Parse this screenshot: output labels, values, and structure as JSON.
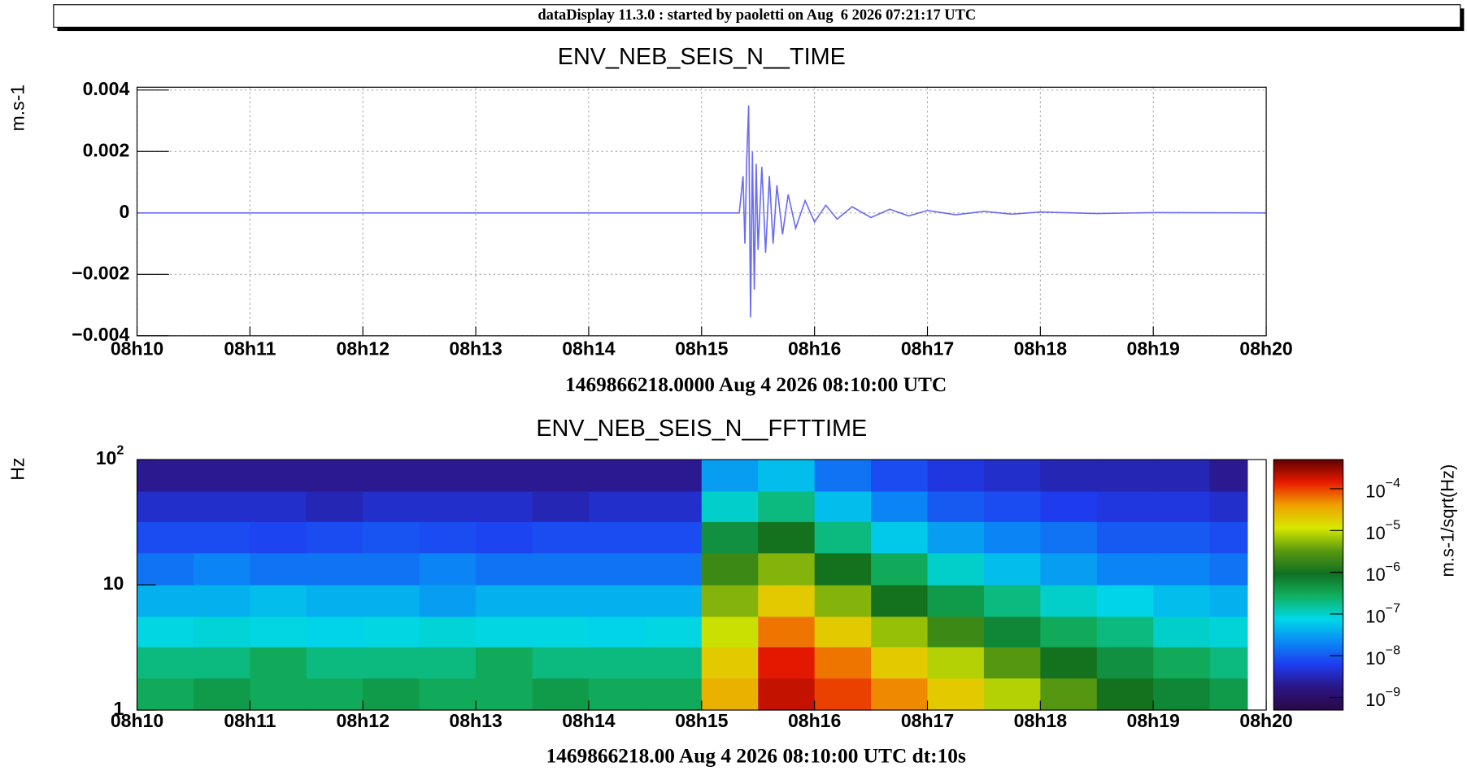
{
  "header": {
    "text": "dataDisplay 11.3.0 : started by paoletti on Aug  6 2026 07:21:17 UTC"
  },
  "chart_data": [
    {
      "type": "line",
      "title": "ENV_NEB_SEIS_N__TIME",
      "xlabel": "1469866218.0000 Aug 4 2026 08:10:00 UTC",
      "ylabel": "m.s-1",
      "color": "#6a6af5",
      "grid": true,
      "xlim": [
        "08h10",
        "08h20"
      ],
      "xticks": [
        "08h10",
        "08h11",
        "08h12",
        "08h13",
        "08h14",
        "08h15",
        "08h16",
        "08h17",
        "08h18",
        "08h19",
        "08h20"
      ],
      "ylim": [
        -0.004,
        0.004
      ],
      "yticks": [
        {
          "value": -0.004,
          "label": "−0.004"
        },
        {
          "value": -0.002,
          "label": "−0.002"
        },
        0,
        0.002,
        0.004
      ],
      "x": [
        "08:10:00",
        "08:15:20",
        "08:15:22",
        "08:15:23",
        "08:15:24",
        "08:15:25",
        "08:15:26",
        "08:15:27",
        "08:15:28",
        "08:15:29",
        "08:15:30",
        "08:15:32",
        "08:15:34",
        "08:15:36",
        "08:15:38",
        "08:15:40",
        "08:15:43",
        "08:15:46",
        "08:15:50",
        "08:15:55",
        "08:16:00",
        "08:16:06",
        "08:16:12",
        "08:16:20",
        "08:16:30",
        "08:16:40",
        "08:16:50",
        "08:17:00",
        "08:17:15",
        "08:17:30",
        "08:17:45",
        "08:18:00",
        "08:18:30",
        "08:19:00",
        "08:20:00"
      ],
      "values": [
        0,
        0,
        0.0012,
        -0.001,
        0.0018,
        0.0035,
        -0.0034,
        0.002,
        -0.0025,
        0.0016,
        -0.0012,
        0.0015,
        -0.0013,
        0.0012,
        -0.001,
        0.0009,
        -0.0007,
        0.0006,
        -0.0005,
        0.0004,
        -0.0003,
        0.00025,
        -0.0002,
        0.0002,
        -0.00015,
        0.00012,
        -0.0001,
        8e-05,
        -6e-05,
        5e-05,
        -4e-05,
        3e-05,
        -2e-05,
        1e-05,
        0
      ]
    },
    {
      "type": "heatmap",
      "title": "ENV_NEB_SEIS_N__FFTTIME",
      "xlabel": "1469866218.00 Aug 4 2026 08:10:00 UTC dt:10s",
      "ylabel": "Hz",
      "zlabel": "m.s-1/sqrt(Hz)",
      "log_y": true,
      "log_z": true,
      "xlim": [
        "08h10",
        "08h20"
      ],
      "xticks": [
        "08h10",
        "08h11",
        "08h12",
        "08h13",
        "08h14",
        "08h15",
        "08h16",
        "08h17",
        "08h18",
        "08h19",
        "08h20"
      ],
      "ylim": [
        1,
        100
      ],
      "yticks": [
        1,
        10,
        {
          "value": 100,
          "label": "10",
          "exp": "2"
        }
      ],
      "zlim": [
        5e-10,
        0.0005
      ],
      "zticks": [
        {
          "value": 1e-09,
          "label": "10",
          "exp": "−9"
        },
        {
          "value": 1e-08,
          "label": "10",
          "exp": "−8"
        },
        {
          "value": 1e-07,
          "label": "10",
          "exp": "−7"
        },
        {
          "value": 1e-06,
          "label": "10",
          "exp": "−6"
        },
        {
          "value": 1e-05,
          "label": "10",
          "exp": "−5"
        },
        {
          "value": 0.0001,
          "label": "10",
          "exp": "−4"
        }
      ],
      "colormap": [
        "#2a0845",
        "#2b1585",
        "#1e3cf0",
        "#0a8af5",
        "#00d8e8",
        "#10b060",
        "#107020",
        "#5a9a10",
        "#d8e800",
        "#f0a000",
        "#e81a00",
        "#600000"
      ],
      "xbins": [
        "08:10:00",
        "08:10:30",
        "08:11:00",
        "08:11:30",
        "08:12:00",
        "08:12:30",
        "08:13:00",
        "08:13:30",
        "08:14:00",
        "08:14:30",
        "08:15:00",
        "08:15:30",
        "08:16:00",
        "08:16:30",
        "08:17:00",
        "08:17:30",
        "08:18:00",
        "08:18:30",
        "08:19:00",
        "08:19:30",
        "08:19:50"
      ],
      "ybins": [
        1,
        1.8,
        3.2,
        5.6,
        10,
        18,
        32,
        56,
        100
      ],
      "values": [
        [
          3e-07,
          4e-07,
          3e-07,
          3e-07,
          4e-07,
          3e-07,
          3e-07,
          4e-07,
          3e-07,
          3e-07,
          3e-05,
          0.0002,
          0.0001,
          5e-05,
          2e-05,
          8e-06,
          3e-06,
          1e-06,
          6e-07,
          4e-07
        ],
        [
          2e-07,
          2e-07,
          3e-07,
          2e-07,
          2e-07,
          2e-07,
          3e-07,
          2e-07,
          2e-07,
          2e-07,
          2e-05,
          0.00015,
          6e-05,
          2e-05,
          8e-06,
          3e-06,
          1e-06,
          5e-07,
          3e-07,
          2e-07
        ],
        [
          8e-08,
          9e-08,
          8e-08,
          7e-08,
          8e-08,
          9e-08,
          8e-08,
          8e-08,
          7e-08,
          8e-08,
          1e-05,
          6e-05,
          2e-05,
          6e-06,
          2e-06,
          6e-07,
          3e-07,
          2e-07,
          1e-07,
          9e-08
        ],
        [
          4e-08,
          4e-08,
          5e-08,
          4e-08,
          4e-08,
          3e-08,
          4e-08,
          4e-08,
          4e-08,
          4e-08,
          5e-06,
          2e-05,
          5e-06,
          1e-06,
          4e-07,
          2e-07,
          1e-07,
          7e-08,
          5e-08,
          4e-08
        ],
        [
          1.5e-08,
          2e-08,
          1.5e-08,
          1.5e-08,
          1.5e-08,
          2e-08,
          1.5e-08,
          1.5e-08,
          1.5e-08,
          1.5e-08,
          2e-06,
          5e-06,
          1e-06,
          3e-07,
          1e-07,
          5e-08,
          3e-08,
          2e-08,
          2e-08,
          1.5e-08
        ],
        [
          8e-09,
          8e-09,
          7e-09,
          8e-09,
          9e-09,
          8e-09,
          7e-09,
          8e-09,
          8e-09,
          8e-09,
          5e-07,
          1e-06,
          2e-07,
          6e-08,
          3e-08,
          2e-08,
          1.5e-08,
          1e-08,
          1e-08,
          8e-09
        ],
        [
          4e-09,
          4e-09,
          4e-09,
          3e-09,
          4e-09,
          4e-09,
          4e-09,
          3e-09,
          4e-09,
          4e-09,
          1e-07,
          2e-07,
          5e-08,
          2e-08,
          1e-08,
          8e-09,
          6e-09,
          5e-09,
          5e-09,
          4e-09
        ],
        [
          2e-09,
          2e-09,
          2e-09,
          2e-09,
          2e-09,
          2e-09,
          2e-09,
          2e-09,
          2e-09,
          2e-09,
          3e-08,
          5e-08,
          1.5e-08,
          8e-09,
          5e-09,
          4e-09,
          3e-09,
          3e-09,
          3e-09,
          2e-09
        ]
      ]
    }
  ]
}
